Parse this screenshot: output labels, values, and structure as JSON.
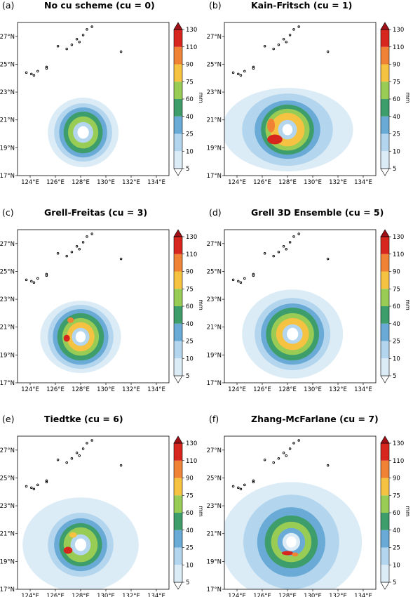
{
  "chart_data": {
    "type": "heatmap",
    "units": "mm",
    "colorbar": {
      "levels": [
        5,
        10,
        25,
        40,
        60,
        75,
        90,
        110,
        130
      ],
      "colors": [
        "#ffffff",
        "#dcecf7",
        "#b3d6ee",
        "#6aaad6",
        "#3d9e6c",
        "#99cc55",
        "#f5c242",
        "#f08236",
        "#d7261e",
        "#a01016"
      ],
      "extend": "both"
    },
    "axes": {
      "xlim": [
        123,
        135
      ],
      "ylim": [
        17,
        28
      ],
      "xticks": [
        "124°E",
        "126°E",
        "128°E",
        "130°E",
        "132°E",
        "134°E"
      ],
      "xtick_values": [
        124,
        126,
        128,
        130,
        132,
        134
      ],
      "yticks": [
        "17°N",
        "19°N",
        "21°N",
        "23°N",
        "25°N",
        "27°N"
      ],
      "ytick_values": [
        17,
        19,
        21,
        23,
        25,
        27
      ]
    },
    "panels": [
      {
        "label": "(a)",
        "title": "No cu scheme (cu = 0)",
        "center": [
          128.2,
          20.1
        ],
        "rings": [
          {
            "level": 1,
            "rx": 2.8,
            "ry": 2.5
          },
          {
            "level": 2,
            "rx": 2.3,
            "ry": 2.1
          },
          {
            "level": 3,
            "rx": 1.9,
            "ry": 1.8
          },
          {
            "level": 4,
            "rx": 1.55,
            "ry": 1.5
          },
          {
            "level": 5,
            "rx": 1.2,
            "ry": 1.15
          },
          {
            "level": 2,
            "rx": 0.8,
            "ry": 0.75
          },
          {
            "level": 0,
            "rx": 0.45,
            "ry": 0.45
          }
        ],
        "spots": []
      },
      {
        "label": "(b)",
        "title": "Kain-Fritsch (cu = 1)",
        "center": [
          128.0,
          20.3
        ],
        "rings": [
          {
            "level": 1,
            "rx": 5.2,
            "ry": 3.0
          },
          {
            "level": 2,
            "rx": 3.6,
            "ry": 2.6
          },
          {
            "level": 3,
            "rx": 2.6,
            "ry": 2.1
          },
          {
            "level": 4,
            "rx": 2.1,
            "ry": 1.8
          },
          {
            "level": 5,
            "rx": 1.75,
            "ry": 1.5
          },
          {
            "level": 6,
            "rx": 1.35,
            "ry": 1.2
          },
          {
            "level": 2,
            "rx": 0.75,
            "ry": 0.7
          },
          {
            "level": 0,
            "rx": 0.4,
            "ry": 0.4
          }
        ],
        "spots": [
          {
            "level": 8,
            "x": 127.0,
            "y": 19.6,
            "rx": 0.6,
            "ry": 0.35
          },
          {
            "level": 7,
            "x": 126.7,
            "y": 20.6,
            "rx": 0.3,
            "ry": 0.5
          }
        ]
      },
      {
        "label": "(c)",
        "title": "Grell-Freitas (cu = 3)",
        "center": [
          128.0,
          20.3
        ],
        "rings": [
          {
            "level": 1,
            "rx": 3.2,
            "ry": 2.6
          },
          {
            "level": 2,
            "rx": 2.6,
            "ry": 2.3
          },
          {
            "level": 3,
            "rx": 2.2,
            "ry": 2.0
          },
          {
            "level": 4,
            "rx": 1.85,
            "ry": 1.7
          },
          {
            "level": 5,
            "rx": 1.45,
            "ry": 1.35
          },
          {
            "level": 6,
            "rx": 1.1,
            "ry": 1.05
          },
          {
            "level": 2,
            "rx": 0.7,
            "ry": 0.65
          },
          {
            "level": 0,
            "rx": 0.4,
            "ry": 0.4
          }
        ],
        "spots": [
          {
            "level": 8,
            "x": 126.9,
            "y": 20.2,
            "rx": 0.25,
            "ry": 0.25
          },
          {
            "level": 7,
            "x": 127.2,
            "y": 21.5,
            "rx": 0.25,
            "ry": 0.2
          }
        ]
      },
      {
        "label": "(d)",
        "title": "Grell 3D Ensemble (cu = 5)",
        "center": [
          128.4,
          20.5
        ],
        "rings": [
          {
            "level": 1,
            "rx": 4.0,
            "ry": 3.2
          },
          {
            "level": 2,
            "rx": 3.0,
            "ry": 2.6
          },
          {
            "level": 3,
            "rx": 2.5,
            "ry": 2.2
          },
          {
            "level": 4,
            "rx": 2.1,
            "ry": 1.9
          },
          {
            "level": 5,
            "rx": 1.7,
            "ry": 1.5
          },
          {
            "level": 6,
            "rx": 1.3,
            "ry": 1.15
          },
          {
            "level": 2,
            "rx": 0.8,
            "ry": 0.7
          },
          {
            "level": 0,
            "rx": 0.45,
            "ry": 0.45
          }
        ],
        "spots": []
      },
      {
        "label": "(e)",
        "title": "Tiedtke (cu = 6)",
        "center": [
          128.0,
          20.2
        ],
        "rings": [
          {
            "level": 1,
            "rx": 4.6,
            "ry": 3.4
          },
          {
            "level": 2,
            "rx": 2.6,
            "ry": 2.3
          },
          {
            "level": 3,
            "rx": 2.1,
            "ry": 1.9
          },
          {
            "level": 4,
            "rx": 1.7,
            "ry": 1.55
          },
          {
            "level": 5,
            "rx": 1.35,
            "ry": 1.25
          },
          {
            "level": 2,
            "rx": 0.8,
            "ry": 0.75
          },
          {
            "level": 0,
            "rx": 0.45,
            "ry": 0.45
          }
        ],
        "spots": [
          {
            "level": 8,
            "x": 127.0,
            "y": 19.8,
            "rx": 0.35,
            "ry": 0.25
          },
          {
            "level": 6,
            "x": 127.4,
            "y": 20.9,
            "rx": 0.3,
            "ry": 0.2
          }
        ]
      },
      {
        "label": "(f)",
        "title": "Zhang-McFarlane (cu = 7)",
        "center": [
          128.3,
          20.4
        ],
        "rings": [
          {
            "level": 1,
            "rx": 5.6,
            "ry": 4.3
          },
          {
            "level": 2,
            "rx": 3.8,
            "ry": 3.4
          },
          {
            "level": 3,
            "rx": 2.7,
            "ry": 2.5
          },
          {
            "level": 4,
            "rx": 2.1,
            "ry": 1.9
          },
          {
            "level": 5,
            "rx": 1.6,
            "ry": 1.45
          },
          {
            "level": 3,
            "rx": 1.1,
            "ry": 1.0
          },
          {
            "level": 1,
            "rx": 0.7,
            "ry": 0.65
          },
          {
            "level": 0,
            "rx": 0.4,
            "ry": 0.4
          }
        ],
        "spots": [
          {
            "level": 8,
            "x": 128.0,
            "y": 19.6,
            "rx": 0.45,
            "ry": 0.15
          },
          {
            "level": 7,
            "x": 128.6,
            "y": 19.5,
            "rx": 0.25,
            "ry": 0.15
          }
        ]
      }
    ],
    "islands": [
      {
        "x": 123.7,
        "y": 24.4
      },
      {
        "x": 124.1,
        "y": 24.3
      },
      {
        "x": 124.3,
        "y": 24.2
      },
      {
        "x": 124.6,
        "y": 24.5
      },
      {
        "x": 125.3,
        "y": 24.7
      },
      {
        "x": 125.3,
        "y": 24.8
      },
      {
        "x": 126.2,
        "y": 26.3
      },
      {
        "x": 126.9,
        "y": 26.1
      },
      {
        "x": 127.3,
        "y": 26.4
      },
      {
        "x": 127.7,
        "y": 26.8
      },
      {
        "x": 127.9,
        "y": 26.6
      },
      {
        "x": 128.2,
        "y": 27.1
      },
      {
        "x": 128.5,
        "y": 27.5
      },
      {
        "x": 128.9,
        "y": 27.7
      },
      {
        "x": 129.4,
        "y": 28.2
      },
      {
        "x": 131.2,
        "y": 25.9
      }
    ]
  }
}
